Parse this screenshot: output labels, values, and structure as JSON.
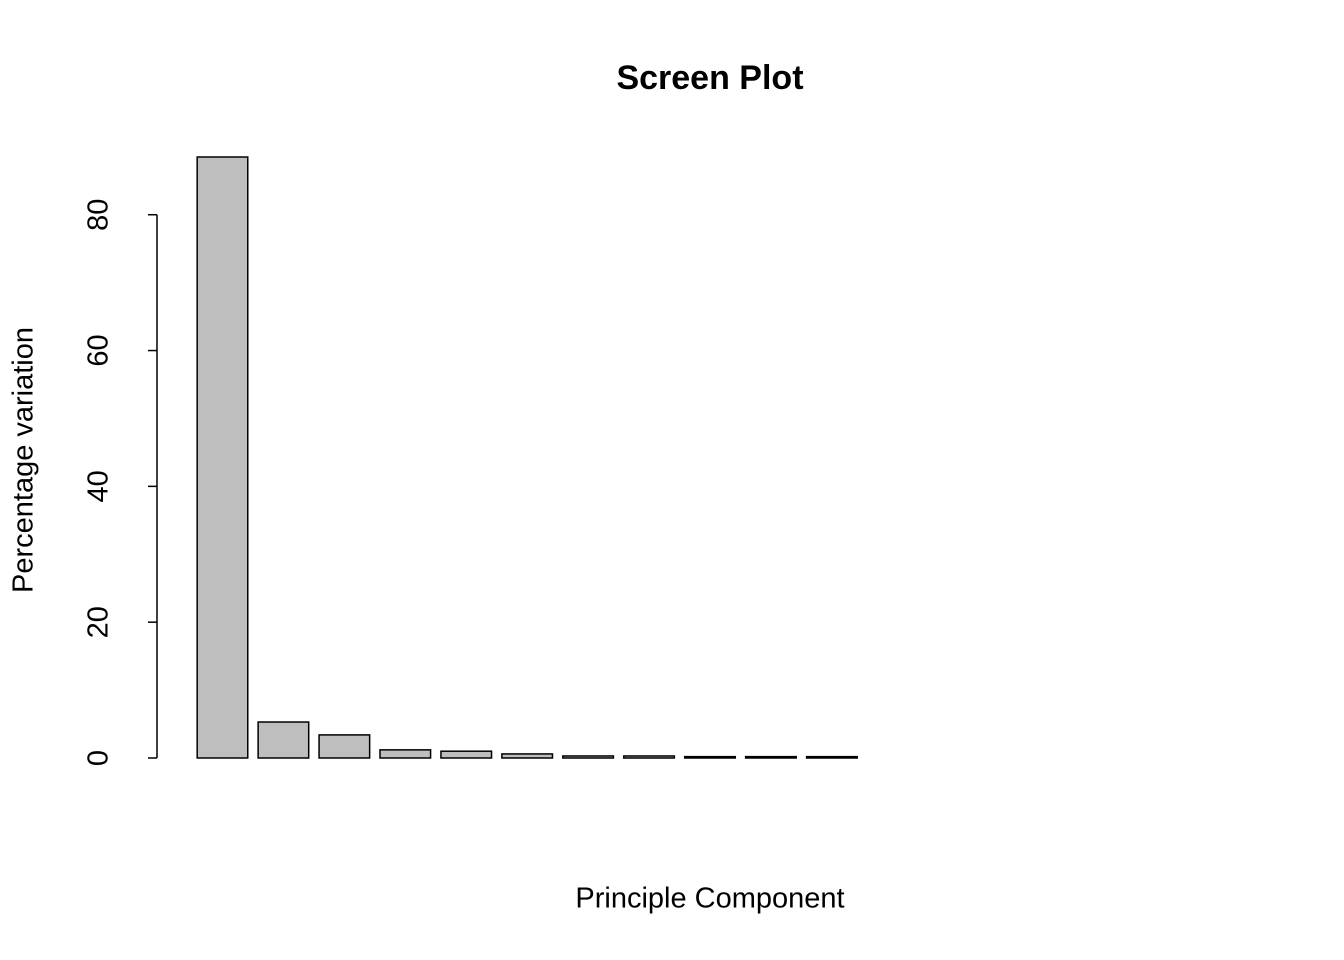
{
  "chart_data": {
    "type": "bar",
    "title": "Screen Plot",
    "x_label": "Principle Component",
    "y_label": "Percentage variation",
    "categories": [
      null,
      null,
      null,
      null,
      null,
      null,
      null,
      null,
      null,
      null,
      null,
      null,
      null,
      null,
      null,
      null,
      null
    ],
    "values": [
      88.5,
      5.3,
      3.4,
      1.2,
      1.0,
      0.6,
      0.3,
      0.3,
      0.2,
      0.2,
      0.2,
      0,
      0,
      0,
      0,
      0,
      0
    ],
    "color": "#bebebe",
    "ylim": [
      0,
      88.5
    ],
    "yticks": [
      0,
      20,
      40,
      60,
      80
    ],
    "grid": false
  }
}
